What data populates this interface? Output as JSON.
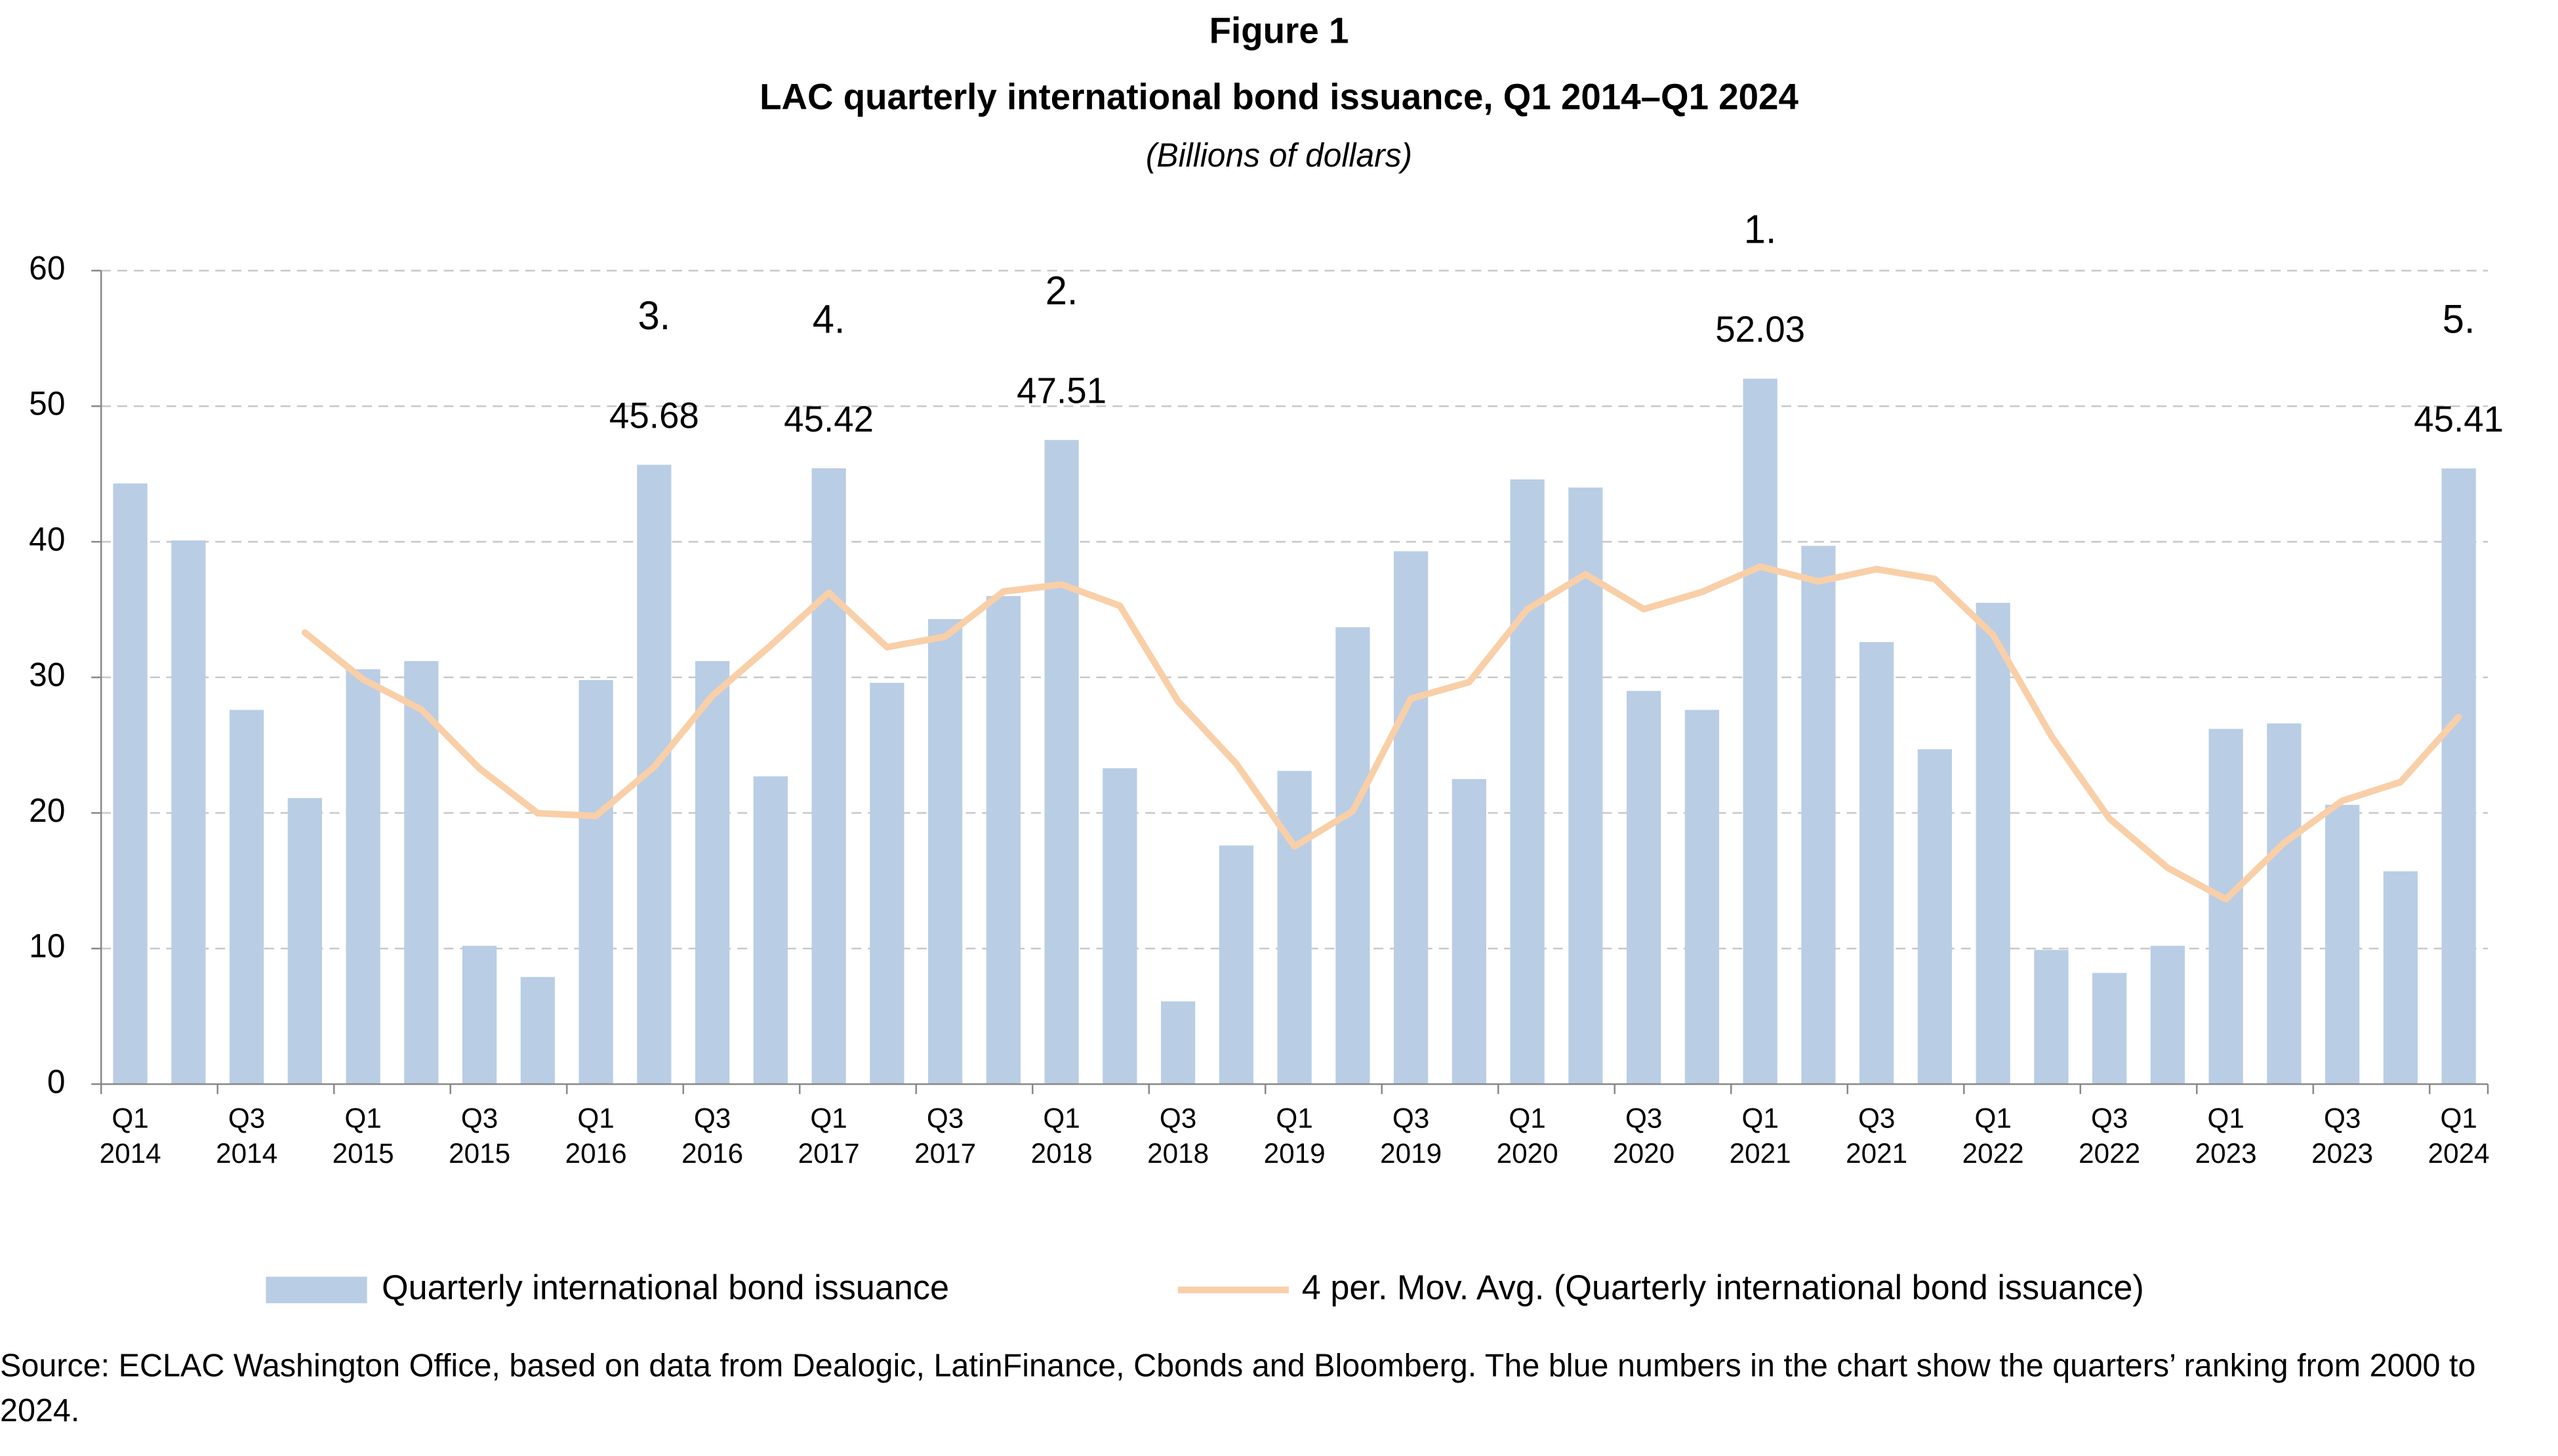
{
  "chart_data": {
    "type": "bar",
    "heading": "Figure 1",
    "title": "LAC quarterly international bond issuance, Q1 2014–Q1 2024",
    "subtitle": "(Billions of dollars)",
    "source": "Source: ECLAC Washington Office, based on data from Dealogic, LatinFinance, Cbonds and Bloomberg. The blue numbers in the chart show the quarters’ ranking from 2000 to 2024.",
    "categories": [
      "Q1 2014",
      null,
      "Q3 2014",
      null,
      "Q1 2015",
      null,
      "Q3 2015",
      null,
      "Q1 2016",
      null,
      "Q3 2016",
      null,
      "Q1 2017",
      null,
      "Q3 2017",
      null,
      "Q1 2018",
      null,
      "Q3 2018",
      null,
      "Q1 2019",
      null,
      "Q3 2019",
      null,
      "Q1 2020",
      null,
      "Q3 2020",
      null,
      "Q1 2021",
      null,
      "Q3 2021",
      null,
      "Q1 2022",
      null,
      "Q3 2022",
      null,
      "Q1 2023",
      null,
      "Q3 2023",
      null,
      "Q1 2024"
    ],
    "series": [
      {
        "name": "Quarterly international bond issuance",
        "type": "bar",
        "color": "#b9cde5",
        "values": [
          44.3,
          40.1,
          27.6,
          21.1,
          30.6,
          31.2,
          10.2,
          7.9,
          29.8,
          45.68,
          31.2,
          22.7,
          45.42,
          29.6,
          34.3,
          36.0,
          47.51,
          23.3,
          6.1,
          17.6,
          23.1,
          33.7,
          39.3,
          22.5,
          44.6,
          44.0,
          29.0,
          27.6,
          52.03,
          39.7,
          32.6,
          24.7,
          35.5,
          9.9,
          8.2,
          10.2,
          26.2,
          26.6,
          20.6,
          15.7,
          45.41
        ],
        "value_labels": [
          null,
          null,
          null,
          null,
          null,
          null,
          null,
          null,
          null,
          "45.68",
          null,
          null,
          "45.42",
          null,
          null,
          null,
          "47.51",
          null,
          null,
          null,
          null,
          null,
          null,
          null,
          null,
          null,
          null,
          null,
          "52.03",
          null,
          null,
          null,
          null,
          null,
          null,
          null,
          null,
          null,
          null,
          null,
          "45.41"
        ],
        "rank_labels": [
          null,
          null,
          null,
          null,
          null,
          null,
          null,
          null,
          null,
          "3.",
          null,
          null,
          "4.",
          null,
          null,
          null,
          "2.",
          null,
          null,
          null,
          null,
          null,
          null,
          null,
          null,
          null,
          null,
          null,
          "1.",
          null,
          null,
          null,
          null,
          null,
          null,
          null,
          null,
          null,
          null,
          null,
          "5."
        ],
        "rank_color": "#3b5a8a"
      },
      {
        "name": "4 per. Mov. Avg. (Quarterly international bond issuance)",
        "type": "line",
        "color": "#f9cfa8",
        "values": [
          null,
          null,
          null,
          33.3,
          29.85,
          27.63,
          23.28,
          19.98,
          19.78,
          23.4,
          28.65,
          32.35,
          36.25,
          32.23,
          33.0,
          36.33,
          36.85,
          35.28,
          28.23,
          23.63,
          17.53,
          20.13,
          28.43,
          29.65,
          35.03,
          37.6,
          35.03,
          36.3,
          38.16,
          37.08,
          37.98,
          37.26,
          33.13,
          25.68,
          19.58,
          15.95,
          13.63,
          17.8,
          20.9,
          22.28,
          27.08
        ]
      }
    ],
    "ylim": [
      0,
      60
    ],
    "yticks": [
      0,
      10,
      20,
      30,
      40,
      50,
      60
    ],
    "grid": true,
    "legend": "bottom"
  }
}
